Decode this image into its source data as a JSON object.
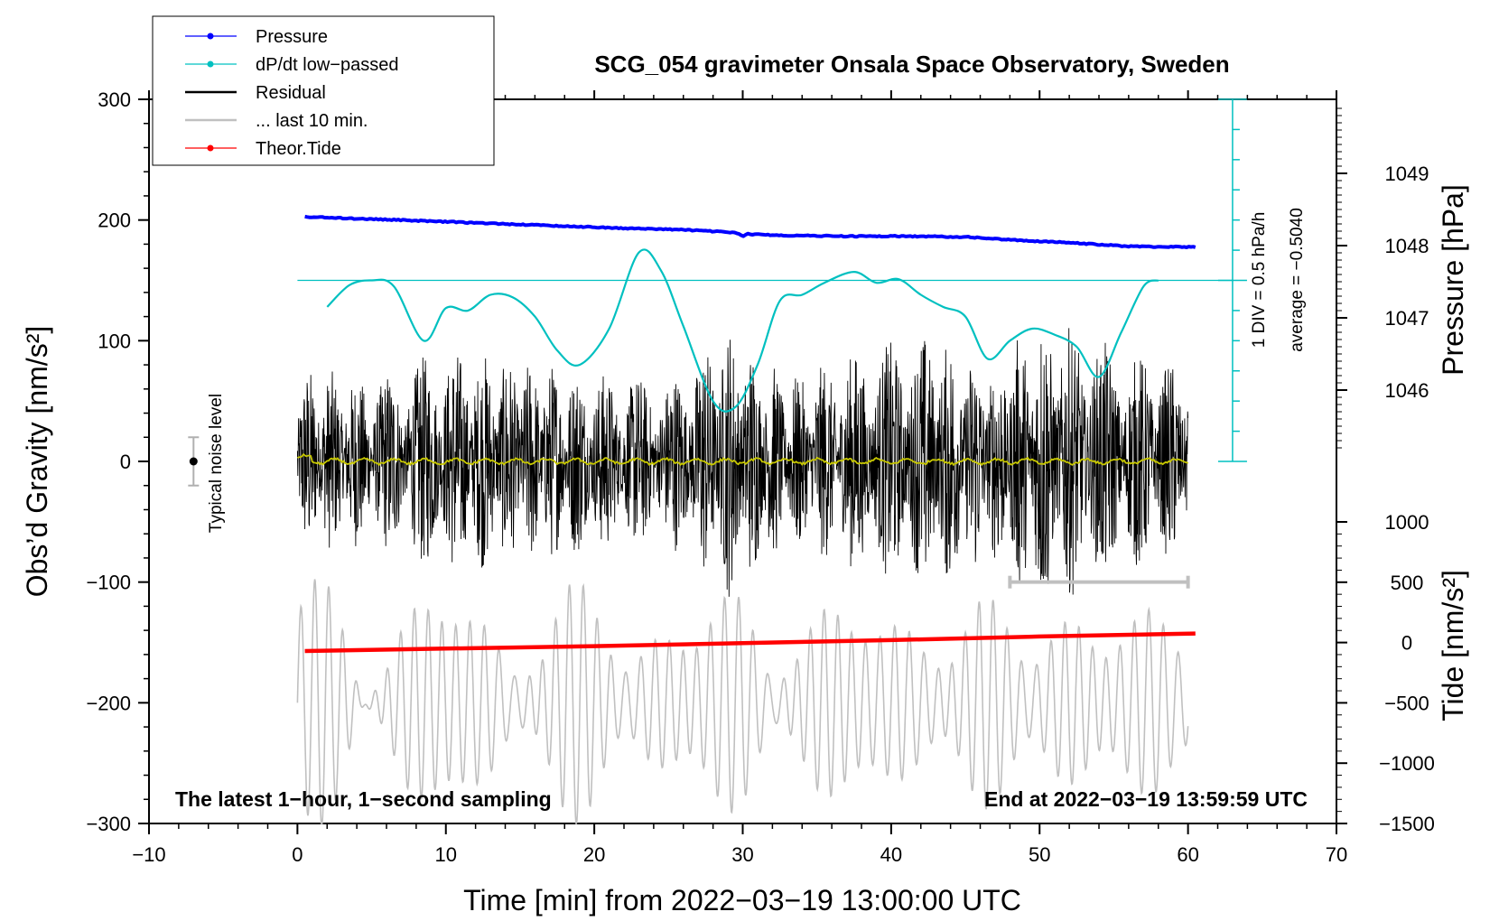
{
  "chart_data": {
    "type": "line",
    "title": "SCG_054 gravimeter Onsala Space Observatory, Sweden",
    "xlabel": "Time [min] from 2022−03−19 13:00:00 UTC",
    "ylabel_left": "Obs’d Gravity [nm/s²]",
    "ylabel_right_top": "Pressure [hPa]",
    "ylabel_right_bottom": "Tide [nm/s²]",
    "xlim": [
      -10,
      70
    ],
    "ylim_left": [
      -300,
      300
    ],
    "x_ticks": [
      "−10",
      "0",
      "10",
      "20",
      "30",
      "40",
      "50",
      "60",
      "70"
    ],
    "y_ticks_left": [
      "300",
      "200",
      "100",
      "0",
      "−100",
      "−200",
      "−300"
    ],
    "pressure_ticks": [
      "1049",
      "1048",
      "1047",
      "1046"
    ],
    "tide_ticks": [
      "1000",
      "500",
      "0",
      "−500",
      "−1000",
      "−1500"
    ],
    "pressure_range": [
      1045,
      1050
    ],
    "tide_range": [
      -1500,
      1000
    ],
    "legend": [
      {
        "label": "Pressure",
        "color": "#0000ff",
        "marker": true
      },
      {
        "label": "dP/dt low−passed",
        "color": "#00c0c0",
        "marker": true
      },
      {
        "label": "Residual",
        "color": "#000000",
        "marker": false
      },
      {
        "label": "... last 10 min.",
        "color": "#c0c0c0",
        "marker": false
      },
      {
        "label": "Theor.Tide",
        "color": "#ff0000",
        "marker": true
      }
    ],
    "noise_label": "Typical noise level",
    "noise_level": 20,
    "dpdt_scale_label": "1 DIV = 0.5 hPa/h",
    "dpdt_average_label": "average = −0.5040",
    "note_left": "The latest 1−hour, 1−second sampling",
    "note_right": "End at 2022−03−19 13:59:59 UTC",
    "series": [
      {
        "name": "Pressure",
        "color": "#0000ff",
        "axis": "pressure",
        "x": [
          0.5,
          3,
          6,
          10,
          14,
          18,
          22,
          26,
          29.5,
          30,
          30.3,
          33,
          37,
          41,
          45,
          48,
          52,
          56,
          60.5
        ],
        "values": [
          1048.4,
          1048.38,
          1048.36,
          1048.33,
          1048.3,
          1048.27,
          1048.24,
          1048.22,
          1048.18,
          1048.13,
          1048.16,
          1048.14,
          1048.13,
          1048.13,
          1048.12,
          1048.08,
          1048.04,
          1047.99,
          1047.98
        ]
      },
      {
        "name": "dP/dt low-passed",
        "color": "#00c0c0",
        "axis": "left",
        "x": [
          2,
          3.5,
          5,
          6.5,
          8.5,
          10,
          11.5,
          13,
          14.5,
          16,
          17.5,
          19,
          21,
          23,
          24.5,
          26,
          28,
          29.5,
          31,
          32.5,
          34,
          35.5,
          37.5,
          39,
          40.5,
          42,
          43.5,
          45,
          46.5,
          48,
          49.5,
          51,
          52.5,
          54,
          55.5,
          57,
          58
        ],
        "values": [
          128,
          146,
          150,
          145,
          100,
          127,
          125,
          138,
          136,
          120,
          92,
          80,
          110,
          173,
          158,
          112,
          50,
          45,
          80,
          133,
          138,
          148,
          157,
          148,
          151,
          138,
          128,
          120,
          85,
          100,
          110,
          105,
          95,
          70,
          107,
          145,
          150
        ]
      },
      {
        "name": "dP/dt reference",
        "color": "#00c0c0",
        "axis": "left",
        "x": [
          0,
          63
        ],
        "values": [
          150,
          150
        ]
      },
      {
        "name": "Theor.Tide",
        "color": "#ff0000",
        "axis": "tide",
        "x": [
          0.5,
          10,
          20,
          30,
          40,
          50,
          60.5
        ],
        "values": [
          -70,
          -50,
          -30,
          -5,
          20,
          50,
          75
        ]
      }
    ],
    "residual_amplitude_envelope": [
      {
        "x": 0,
        "amp": 80
      },
      {
        "x": 5,
        "amp": 70
      },
      {
        "x": 10,
        "amp": 95
      },
      {
        "x": 16,
        "amp": 85
      },
      {
        "x": 20,
        "amp": 75
      },
      {
        "x": 25,
        "amp": 70
      },
      {
        "x": 29,
        "amp": 115
      },
      {
        "x": 33,
        "amp": 70
      },
      {
        "x": 37,
        "amp": 90
      },
      {
        "x": 43,
        "amp": 110
      },
      {
        "x": 47,
        "amp": 85
      },
      {
        "x": 50,
        "amp": 125
      },
      {
        "x": 55,
        "amp": 95
      },
      {
        "x": 60,
        "amp": 80
      }
    ],
    "last10_bar": {
      "x": [
        48,
        60
      ],
      "y": -100
    },
    "residual_mean_color": "#c8c800"
  }
}
